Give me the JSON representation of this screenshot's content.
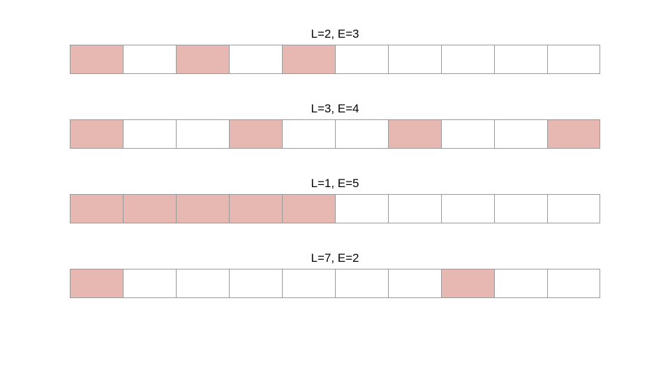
{
  "colors": {
    "filled": "#e6b8b1",
    "empty": "#ffffff",
    "border": "#999999"
  },
  "rows": [
    {
      "label": "L=2, E=3",
      "cells": [
        1,
        0,
        1,
        0,
        1,
        0,
        0,
        0,
        0,
        0
      ]
    },
    {
      "label": "L=3, E=4",
      "cells": [
        1,
        0,
        0,
        1,
        0,
        0,
        1,
        0,
        0,
        1
      ]
    },
    {
      "label": "L=1, E=5",
      "cells": [
        1,
        1,
        1,
        1,
        1,
        0,
        0,
        0,
        0,
        0
      ]
    },
    {
      "label": "L=7, E=2",
      "cells": [
        1,
        0,
        0,
        0,
        0,
        0,
        0,
        1,
        0,
        0
      ]
    }
  ]
}
